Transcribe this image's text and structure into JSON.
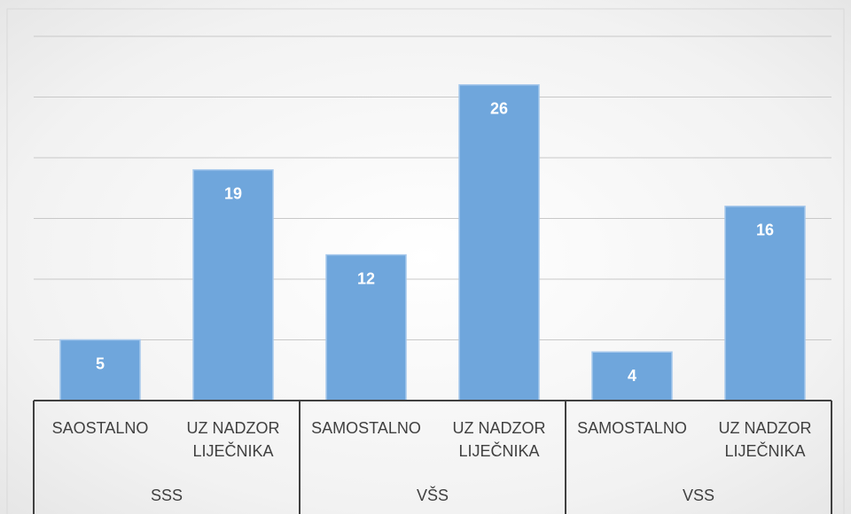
{
  "chart_data": {
    "type": "bar",
    "categories": [
      "SAOSTALNO",
      "UZ NADZOR LIJEČNIKA",
      "SAMOSTALNO",
      "UZ NADZOR LIJEČNIKA",
      "SAMOSTALNO",
      "UZ NADZOR LIJEČNIKA"
    ],
    "groups": [
      "SSS",
      "VŠS",
      "VSS"
    ],
    "values": [
      5,
      19,
      12,
      26,
      4,
      16
    ],
    "color": "#6fa6dc",
    "ylim": [
      0,
      30
    ],
    "yticks": [
      0,
      5,
      10,
      15,
      20,
      25,
      30
    ],
    "grid": true
  }
}
